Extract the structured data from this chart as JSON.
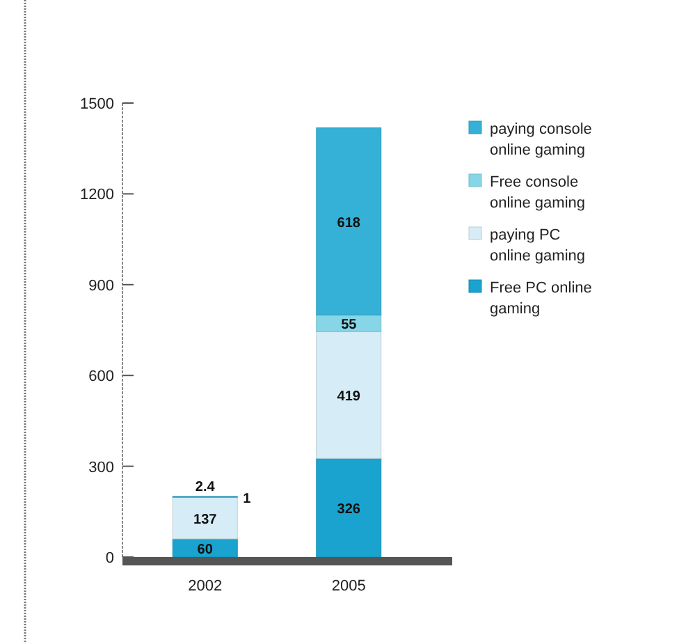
{
  "chart_data": {
    "type": "bar",
    "stacked": true,
    "categories": [
      "2002",
      "2005"
    ],
    "series": [
      {
        "name": "Free PC online gaming",
        "color": "#1aa3cf",
        "values": [
          60,
          326
        ]
      },
      {
        "name": "paying PC online gaming",
        "color": "#d6ecf7",
        "values": [
          137,
          419
        ]
      },
      {
        "name": "Free console online gaming",
        "color": "#86d6e8",
        "values": [
          1,
          55
        ]
      },
      {
        "name": "paying console online gaming",
        "color": "#35b0d6",
        "values": [
          2.4,
          618
        ]
      }
    ],
    "ylim": [
      0,
      1500
    ],
    "yticks": [
      0,
      300,
      600,
      900,
      1200,
      1500
    ],
    "data_labels": true,
    "legend": "right",
    "grid": false
  }
}
